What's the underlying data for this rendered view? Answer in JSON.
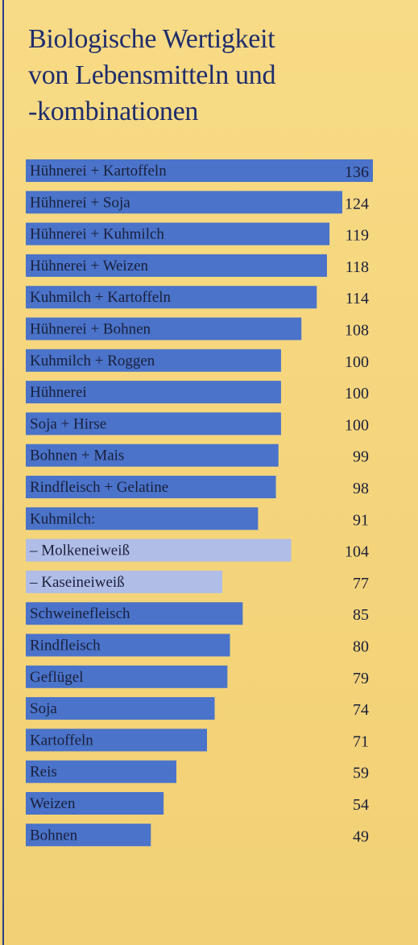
{
  "colors": {
    "background": "#f6d77f",
    "bar_primary": "#4a73c9",
    "bar_secondary": "#b0bde6",
    "title": "#1f2d6b",
    "text": "#1a1f3a"
  },
  "chart_data": {
    "type": "bar",
    "orientation": "horizontal",
    "title_lines": [
      "Biologische Wertigkeit",
      "von Lebensmitteln und",
      "-kombinationen"
    ],
    "xlim": [
      0,
      136
    ],
    "categories": [
      "Hühnerei + Kartoffeln",
      "Hühnerei + Soja",
      "Hühnerei + Kuhmilch",
      "Hühnerei + Weizen",
      "Kuhmilch + Kartoffeln",
      "Hühnerei + Bohnen",
      "Kuhmilch + Roggen",
      "Hühnerei",
      "Soja + Hirse",
      "Bohnen + Mais",
      "Rindfleisch + Gelatine",
      "Kuhmilch:",
      "– Molkeneiweiß",
      "– Kaseineiweiß",
      "Schweinefleisch",
      "Rindfleisch",
      "Geflügel",
      "Soja",
      "Kartoffeln",
      "Reis",
      "Weizen",
      "Bohnen"
    ],
    "values": [
      136,
      124,
      119,
      118,
      114,
      108,
      100,
      100,
      100,
      99,
      98,
      91,
      104,
      77,
      85,
      80,
      79,
      74,
      71,
      59,
      54,
      49
    ],
    "value_labels": [
      "136",
      "124",
      "119",
      "118",
      "114",
      "108",
      "100",
      "100",
      "100",
      "99",
      "98",
      "91",
      "104",
      "77",
      "85",
      "80",
      "79",
      "74",
      "71",
      "59",
      "54",
      "49"
    ],
    "subcategory_flags": [
      false,
      false,
      false,
      false,
      false,
      false,
      false,
      false,
      false,
      false,
      false,
      false,
      true,
      true,
      false,
      false,
      false,
      false,
      false,
      false,
      false,
      false
    ],
    "grid": false,
    "legend": "none"
  }
}
